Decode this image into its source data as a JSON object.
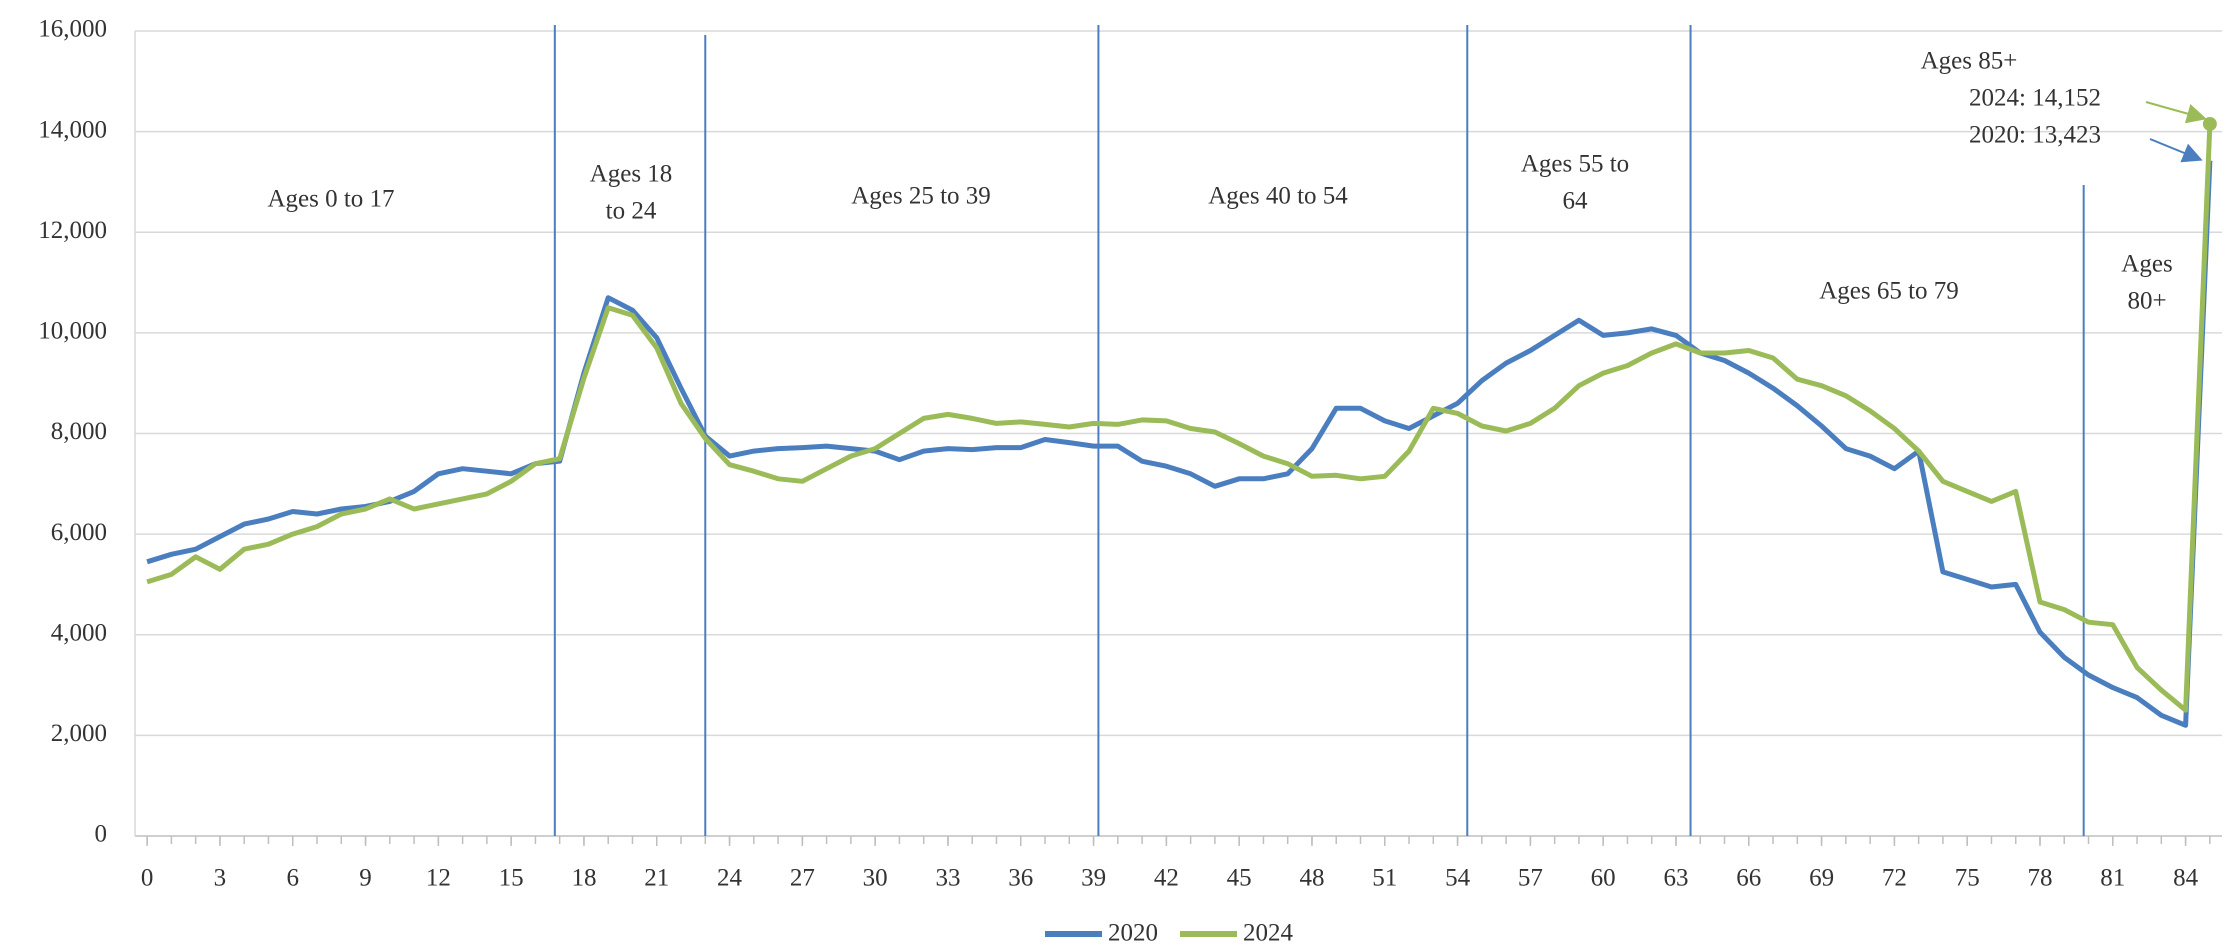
{
  "chart_data": {
    "type": "line",
    "x": [
      0,
      1,
      2,
      3,
      4,
      5,
      6,
      7,
      8,
      9,
      10,
      11,
      12,
      13,
      14,
      15,
      16,
      17,
      18,
      19,
      20,
      21,
      22,
      23,
      24,
      25,
      26,
      27,
      28,
      29,
      30,
      31,
      32,
      33,
      34,
      35,
      36,
      37,
      38,
      39,
      40,
      41,
      42,
      43,
      44,
      45,
      46,
      47,
      48,
      49,
      50,
      51,
      52,
      53,
      54,
      55,
      56,
      57,
      58,
      59,
      60,
      61,
      62,
      63,
      64,
      65,
      66,
      67,
      68,
      69,
      70,
      71,
      72,
      73,
      74,
      75,
      76,
      77,
      78,
      79,
      80,
      81,
      82,
      83,
      84,
      85
    ],
    "series": [
      {
        "name": "2020",
        "color": "#4a7ebf",
        "values": [
          5450,
          5600,
          5700,
          5950,
          6200,
          6300,
          6450,
          6400,
          6500,
          6550,
          6650,
          6850,
          7200,
          7300,
          7250,
          7200,
          7400,
          7450,
          9200,
          10700,
          10450,
          9900,
          8900,
          7950,
          7550,
          7650,
          7700,
          7720,
          7750,
          7700,
          7650,
          7480,
          7650,
          7700,
          7680,
          7720,
          7720,
          7880,
          7820,
          7750,
          7750,
          7450,
          7350,
          7200,
          6950,
          7100,
          7100,
          7200,
          7700,
          8500,
          8500,
          8250,
          8100,
          8350,
          8600,
          9050,
          9400,
          9650,
          9950,
          10250,
          9950,
          10000,
          10080,
          9950,
          9600,
          9450,
          9200,
          8900,
          8550,
          8150,
          7700,
          7550,
          7300,
          7650,
          5250,
          5100,
          4950,
          5000,
          4050,
          3550,
          3200,
          2950,
          2750,
          2400,
          2200,
          13423
        ]
      },
      {
        "name": "2024",
        "color": "#9bbb59",
        "values": [
          5050,
          5200,
          5550,
          5300,
          5700,
          5800,
          6000,
          6150,
          6400,
          6500,
          6700,
          6500,
          6600,
          6700,
          6800,
          7050,
          7400,
          7500,
          9100,
          10500,
          10350,
          9700,
          8600,
          7900,
          7380,
          7250,
          7100,
          7050,
          7300,
          7550,
          7700,
          8000,
          8300,
          8380,
          8300,
          8200,
          8230,
          8180,
          8130,
          8200,
          8180,
          8270,
          8250,
          8100,
          8030,
          7800,
          7550,
          7400,
          7150,
          7170,
          7100,
          7150,
          7650,
          8500,
          8400,
          8150,
          8050,
          8200,
          8500,
          8950,
          9200,
          9350,
          9600,
          9780,
          9600,
          9600,
          9650,
          9500,
          9080,
          8950,
          8750,
          8450,
          8100,
          7650,
          7050,
          6850,
          6650,
          6850,
          4650,
          4500,
          4250,
          4200,
          3350,
          2900,
          2500,
          14152
        ]
      }
    ],
    "xlim": [
      -0.5,
      85.5
    ],
    "xticks": [
      0,
      3,
      6,
      9,
      12,
      15,
      18,
      21,
      24,
      27,
      30,
      33,
      36,
      39,
      42,
      45,
      48,
      51,
      54,
      57,
      60,
      63,
      66,
      69,
      72,
      75,
      78,
      81,
      84
    ],
    "ylim": [
      0,
      16000
    ],
    "yticks": [
      0,
      {
        "value": 2000,
        "label": "2,000"
      },
      {
        "value": 4000,
        "label": "4,000"
      },
      {
        "value": 6000,
        "label": "6,000"
      },
      {
        "value": 8000,
        "label": "8,000"
      },
      {
        "value": 10000,
        "label": "10,000"
      },
      {
        "value": 12000,
        "label": "12,000"
      },
      {
        "value": 14000,
        "label": "14,000"
      },
      {
        "value": 16000,
        "label": "16,000"
      }
    ],
    "grid": true,
    "dividers": [
      16.8,
      23,
      39.2,
      54.4,
      63.6,
      79.8
    ],
    "annotations": [
      {
        "lines": [
          "Ages 0 to 17"
        ]
      },
      {
        "lines": [
          "Ages 18",
          "to 24"
        ]
      },
      {
        "lines": [
          "Ages 25 to 39"
        ]
      },
      {
        "lines": [
          "Ages 40 to 54"
        ]
      },
      {
        "lines": [
          "Ages 55 to",
          "64"
        ]
      },
      {
        "lines": [
          "Ages 65 to 79"
        ]
      },
      {
        "lines": [
          "Ages",
          "80+"
        ]
      }
    ],
    "callout": [
      "Ages 85+",
      "2024: 14,152",
      "2020: 13,423"
    ],
    "legend": "bottom"
  }
}
